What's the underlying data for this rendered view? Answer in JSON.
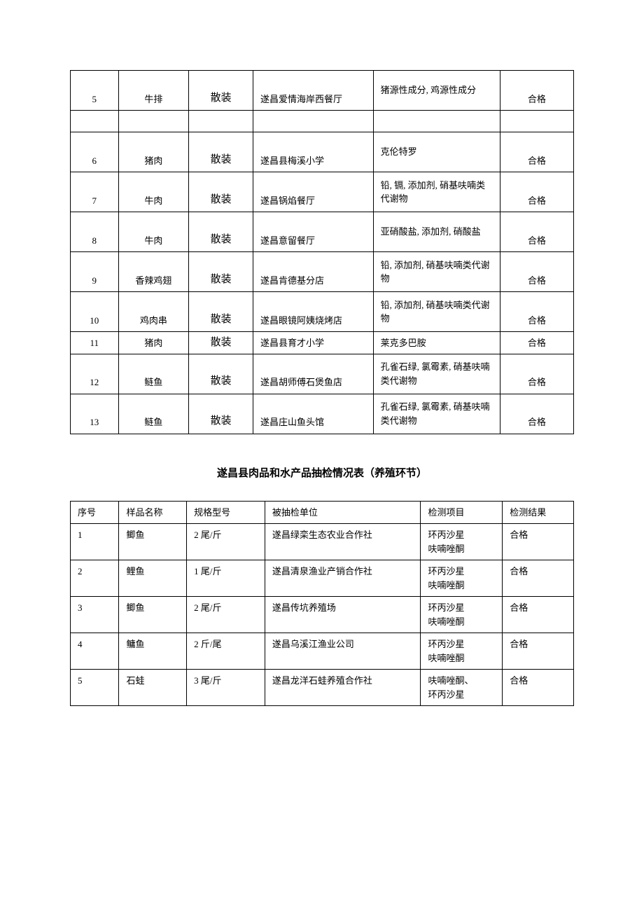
{
  "table1": {
    "rows": [
      {
        "seq": "5",
        "name": "牛排",
        "spec": "散装",
        "unit": "遂昌爱情海岸西餐厅",
        "item": "猪源性成分, 鸡源性成分",
        "result": "合格",
        "twoLine": true
      },
      {
        "seq": "6",
        "name": "猪肉",
        "spec": "散装",
        "unit": "遂昌县梅溪小学",
        "item": "克伦特罗",
        "result": "合格",
        "twoLine": true,
        "emptyBefore": true
      },
      {
        "seq": "7",
        "name": "牛肉",
        "spec": "散装",
        "unit": "遂昌锅焰餐厅",
        "item": "铅, 镉, 添加剂, 硝基呋喃类代谢物",
        "result": "合格",
        "twoLine": true
      },
      {
        "seq": "8",
        "name": "牛肉",
        "spec": "散装",
        "unit": "遂昌意留餐厅",
        "item": "亚硝酸盐, 添加剂, 硝酸盐",
        "result": "合格",
        "twoLine": true
      },
      {
        "seq": "9",
        "name": "香辣鸡翅",
        "spec": "散装",
        "unit": "遂昌肯德基分店",
        "item": "铅, 添加剂, 硝基呋喃类代谢物",
        "result": "合格",
        "twoLine": true
      },
      {
        "seq": "10",
        "name": "鸡肉串",
        "spec": "散装",
        "unit": "遂昌眼镜阿姨烧烤店",
        "item": "铅, 添加剂, 硝基呋喃类代谢物",
        "result": "合格",
        "twoLine": true
      },
      {
        "seq": "11",
        "name": "猪肉",
        "spec": "散装",
        "unit": "遂昌县育才小学",
        "item": "莱克多巴胺",
        "result": "合格",
        "twoLine": false
      },
      {
        "seq": "12",
        "name": "鲢鱼",
        "spec": "散装",
        "unit": "遂昌胡师傅石煲鱼店",
        "item": "孔雀石绿, 氯霉素, 硝基呋喃类代谢物",
        "result": "合格",
        "twoLine": true
      },
      {
        "seq": "13",
        "name": "鲢鱼",
        "spec": "散装",
        "unit": "遂昌庄山鱼头馆",
        "item": "孔雀石绿, 氯霉素, 硝基呋喃类代谢物",
        "result": "合格",
        "twoLine": true
      }
    ]
  },
  "sectionTitle": "遂昌县肉品和水产品抽检情况表（养殖环节）",
  "table2": {
    "headers": {
      "seq": "序号",
      "name": "样品名称",
      "spec": "规格型号",
      "unit": "被抽检单位",
      "item": "检测项目",
      "result": "检测结果"
    },
    "rows": [
      {
        "seq": "1",
        "name": "鲫鱼",
        "spec": "2 尾/斤",
        "unit": "遂昌绿栾生态农业合作社",
        "item": "环丙沙星\n呋喃唑酮",
        "result": "合格"
      },
      {
        "seq": "2",
        "name": "鲤鱼",
        "spec": "1 尾/斤",
        "unit": "遂昌清泉渔业产销合作社",
        "item": "环丙沙星\n呋喃唑酮",
        "result": "合格"
      },
      {
        "seq": "3",
        "name": "鲫鱼",
        "spec": "2 尾/斤",
        "unit": "遂昌传坑养殖场",
        "item": "环丙沙星\n呋喃唑酮",
        "result": "合格"
      },
      {
        "seq": "4",
        "name": "鳙鱼",
        "spec": "2 斤/尾",
        "unit": "遂昌乌溪江渔业公司",
        "item": "环丙沙星\n呋喃唑酮",
        "result": "合格"
      },
      {
        "seq": "5",
        "name": "石蛙",
        "spec": "3 尾/斤",
        "unit": "遂昌龙洋石蛙养殖合作社",
        "item": "呋喃唑酮、\n环丙沙星",
        "result": "合格"
      }
    ]
  }
}
